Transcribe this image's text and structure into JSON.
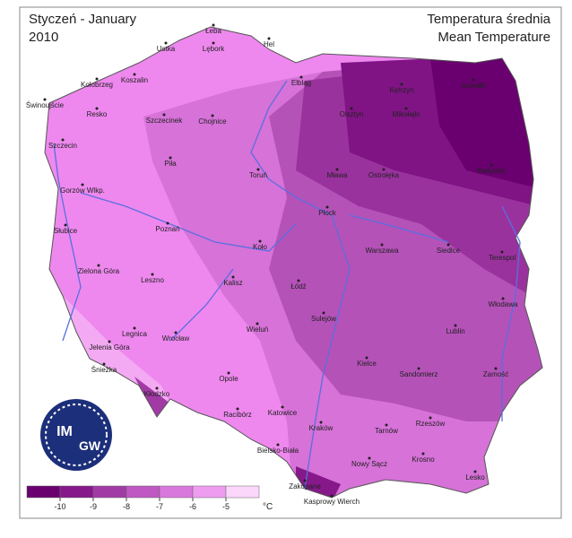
{
  "header": {
    "title_pl": "Styczeń - January",
    "year": "2010",
    "title_right_pl": "Temperatura średnia",
    "title_right_en": "Mean Temperature"
  },
  "logo": [
    "IM",
    "GW"
  ],
  "cities": [
    "Łeba",
    "Hel",
    "Lębork",
    "Ustka",
    "Kołobrzeg",
    "Koszalin",
    "Świnoujście",
    "Resko",
    "Szczecinek",
    "Chojnice",
    "Elbląg",
    "Kętrzyn",
    "Suwałki",
    "Olsztyn",
    "Mikołajki",
    "Szczecin",
    "Piła",
    "Toruń",
    "Mława",
    "Ostrołęka",
    "Białystok",
    "Gorzów Wlkp.",
    "Płock",
    "Słubice",
    "Poznań",
    "Koło",
    "Siedlce",
    "Terespol",
    "Warszawa",
    "Zielona Góra",
    "Leszno",
    "Kalisz",
    "Łódź",
    "Włodawa",
    "Sulejów",
    "Legnica",
    "Wrocław",
    "Wieluń",
    "Lublin",
    "Jelenia Góra",
    "Śnieżka",
    "Kielce",
    "Sandomierz",
    "Zamość",
    "Opole",
    "Kłodzko",
    "Racibórz",
    "Katowice",
    "Tarnów",
    "Rzeszów",
    "Kraków",
    "Krosno",
    "Bielsko-Biała",
    "Nowy Sącz",
    "Lesko",
    "Zakopane",
    "Kasprowy Wierch"
  ],
  "legend": {
    "colors": [
      "#6a006f",
      "#86188a",
      "#a23aa6",
      "#bf58c3",
      "#d978dc",
      "#ee9cf0",
      "#fbd6fb"
    ],
    "ticks": [
      -10,
      -9,
      -8,
      -7,
      -6,
      -5
    ],
    "unit": "°C"
  }
}
